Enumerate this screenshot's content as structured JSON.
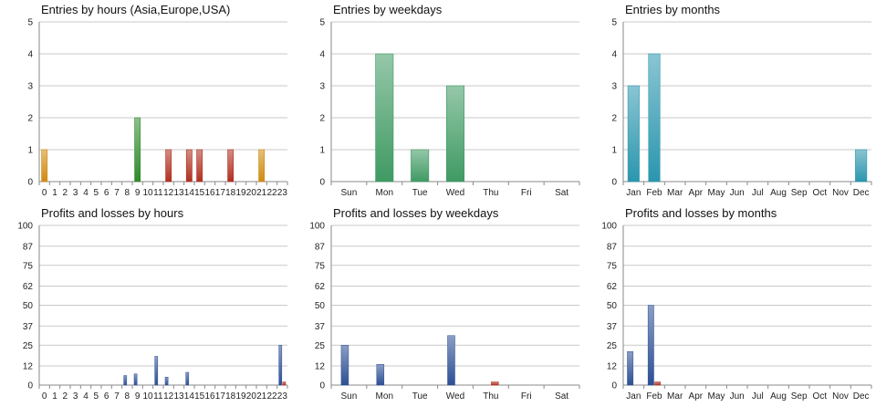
{
  "chart_data": [
    {
      "id": "c0",
      "type": "bar",
      "title": "Entries by hours (Asia,Europe,USA)",
      "categories": [
        "0",
        "1",
        "2",
        "3",
        "4",
        "5",
        "6",
        "7",
        "8",
        "9",
        "10",
        "11",
        "12",
        "13",
        "14",
        "15",
        "16",
        "17",
        "18",
        "19",
        "20",
        "21",
        "22",
        "23"
      ],
      "values": [
        1,
        0,
        0,
        0,
        0,
        0,
        0,
        0,
        0,
        2,
        0,
        0,
        1,
        0,
        1,
        1,
        0,
        0,
        1,
        0,
        0,
        1,
        0,
        0
      ],
      "bar_colors": [
        "#d08a10",
        "#d08a10",
        "#d08a10",
        "#d08a10",
        "#d08a10",
        "#d08a10",
        "#d08a10",
        "#d08a10",
        "#d08a10",
        "#2f8a2a",
        "#b03020",
        "#b03020",
        "#b03020",
        "#b03020",
        "#b03020",
        "#b03020",
        "#b03020",
        "#b03020",
        "#b03020",
        "#d08a10",
        "#d08a10",
        "#d08a10",
        "#d08a10",
        "#d08a10"
      ],
      "yticks": [
        0,
        1,
        2,
        3,
        4,
        5
      ],
      "ylim": [
        0,
        5
      ]
    },
    {
      "id": "c1",
      "type": "bar",
      "title": "Entries by weekdays",
      "categories": [
        "Sun",
        "Mon",
        "Tue",
        "Wed",
        "Thu",
        "Fri",
        "Sat"
      ],
      "values": [
        0,
        4,
        1,
        3,
        0,
        0,
        0
      ],
      "bar_colors": [
        "#3f9a62",
        "#3f9a62",
        "#3f9a62",
        "#3f9a62",
        "#3f9a62",
        "#3f9a62",
        "#3f9a62"
      ],
      "yticks": [
        0,
        1,
        2,
        3,
        4,
        5
      ],
      "ylim": [
        0,
        5
      ]
    },
    {
      "id": "c2",
      "type": "bar",
      "title": "Entries by months",
      "categories": [
        "Jan",
        "Feb",
        "Mar",
        "Apr",
        "May",
        "Jun",
        "Jul",
        "Aug",
        "Sep",
        "Oct",
        "Nov",
        "Dec"
      ],
      "values": [
        3,
        4,
        0,
        0,
        0,
        0,
        0,
        0,
        0,
        0,
        0,
        1
      ],
      "bar_colors": [
        "#2a96ae",
        "#2a96ae",
        "#2a96ae",
        "#2a96ae",
        "#2a96ae",
        "#2a96ae",
        "#2a96ae",
        "#2a96ae",
        "#2a96ae",
        "#2a96ae",
        "#2a96ae",
        "#2a96ae"
      ],
      "yticks": [
        0,
        1,
        2,
        3,
        4,
        5
      ],
      "ylim": [
        0,
        5
      ]
    },
    {
      "id": "c3",
      "type": "bar",
      "title": "Profits and losses by hours",
      "categories": [
        "0",
        "1",
        "2",
        "3",
        "4",
        "5",
        "6",
        "7",
        "8",
        "9",
        "10",
        "11",
        "12",
        "13",
        "14",
        "15",
        "16",
        "17",
        "18",
        "19",
        "20",
        "21",
        "22",
        "23"
      ],
      "series": [
        {
          "name": "Profits",
          "color": "#2c4f94",
          "values": [
            0,
            0,
            0,
            0,
            0,
            0,
            0,
            0,
            6,
            7,
            0,
            18,
            5,
            0,
            8,
            0,
            0,
            0,
            0,
            0,
            0,
            0,
            0,
            25
          ]
        },
        {
          "name": "Losses",
          "color": "#b03020",
          "values": [
            0,
            0,
            0,
            0,
            0,
            0,
            0,
            0,
            0,
            0,
            0,
            0,
            0,
            0,
            0,
            0,
            0,
            0,
            0,
            0,
            0,
            0,
            0,
            2
          ]
        }
      ],
      "yticks": [
        0,
        12,
        25,
        37,
        50,
        62,
        75,
        87,
        100
      ],
      "ylim": [
        0,
        100
      ]
    },
    {
      "id": "c4",
      "type": "bar",
      "title": "Profits and losses by weekdays",
      "categories": [
        "Sun",
        "Mon",
        "Tue",
        "Wed",
        "Thu",
        "Fri",
        "Sat"
      ],
      "series": [
        {
          "name": "Profits",
          "color": "#2c4f94",
          "values": [
            25,
            13,
            0,
            31,
            0,
            0,
            0
          ]
        },
        {
          "name": "Losses",
          "color": "#b03020",
          "values": [
            0,
            0,
            0,
            0,
            2,
            0,
            0
          ]
        }
      ],
      "yticks": [
        0,
        12,
        25,
        37,
        50,
        62,
        75,
        87,
        100
      ],
      "ylim": [
        0,
        100
      ]
    },
    {
      "id": "c5",
      "type": "bar",
      "title": "Profits and losses by months",
      "categories": [
        "Jan",
        "Feb",
        "Mar",
        "Apr",
        "May",
        "Jun",
        "Jul",
        "Aug",
        "Sep",
        "Oct",
        "Nov",
        "Dec"
      ],
      "series": [
        {
          "name": "Profits",
          "color": "#2c4f94",
          "values": [
            21,
            50,
            0,
            0,
            0,
            0,
            0,
            0,
            0,
            0,
            0,
            0
          ]
        },
        {
          "name": "Losses",
          "color": "#b03020",
          "values": [
            0,
            2,
            0,
            0,
            0,
            0,
            0,
            0,
            0,
            0,
            0,
            0
          ]
        }
      ],
      "yticks": [
        0,
        12,
        25,
        37,
        50,
        62,
        75,
        87,
        100
      ],
      "ylim": [
        0,
        100
      ]
    }
  ]
}
